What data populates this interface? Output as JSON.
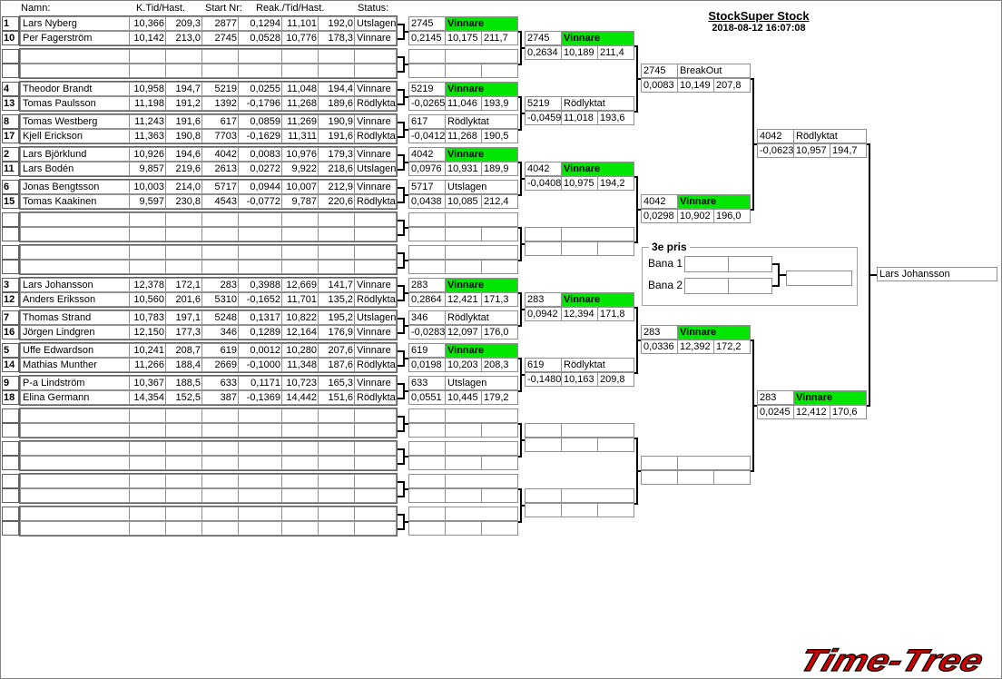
{
  "header": {
    "title": "StockSuper Stock",
    "timestamp": "2018-08-12 16:07:08"
  },
  "columns": {
    "name": "Namn:",
    "ktime": "K.Tid/Hast.",
    "start": "Start Nr:",
    "reak": "Reak./Tid/Hast.",
    "status": "Status:"
  },
  "colors": {
    "winner": "#00e600",
    "logo": "#d40000"
  },
  "heats": [
    {
      "rows": [
        {
          "seed": "1",
          "name": "Lars Nyberg",
          "kt": "10,366",
          "kh": "209,3",
          "start": "2877",
          "reak": "0,1294",
          "tid": "11,101",
          "hast": "192,0",
          "status": "Utslagen"
        },
        {
          "seed": "10",
          "name": "Per  Fagerström",
          "kt": "10,142",
          "kh": "213,0",
          "start": "2745",
          "reak": "0,0528",
          "tid": "10,776",
          "hast": "178,3",
          "status": "Vinnare"
        }
      ]
    },
    {
      "rows": [
        {
          "seed": "",
          "name": "",
          "kt": "",
          "kh": "",
          "start": "",
          "reak": "",
          "tid": "",
          "hast": "",
          "status": ""
        },
        {
          "seed": "",
          "name": "",
          "kt": "",
          "kh": "",
          "start": "",
          "reak": "",
          "tid": "",
          "hast": "",
          "status": ""
        }
      ]
    },
    {
      "rows": [
        {
          "seed": "4",
          "name": "Theodor Brandt",
          "kt": "10,958",
          "kh": "194,7",
          "start": "5219",
          "reak": "0,0255",
          "tid": "11,048",
          "hast": "194,4",
          "status": "Vinnare"
        },
        {
          "seed": "13",
          "name": "Tomas Paulsson",
          "kt": "11,198",
          "kh": "191,2",
          "start": "1392",
          "reak": "-0,1796",
          "tid": "11,268",
          "hast": "189,6",
          "status": "Rödlyktat"
        }
      ]
    },
    {
      "rows": [
        {
          "seed": "8",
          "name": "Tomas Westberg",
          "kt": "11,243",
          "kh": "191,6",
          "start": "617",
          "reak": "0,0859",
          "tid": "11,269",
          "hast": "190,9",
          "status": "Vinnare"
        },
        {
          "seed": "17",
          "name": "Kjell Erickson",
          "kt": "11,363",
          "kh": "190,8",
          "start": "7703",
          "reak": "-0,1629",
          "tid": "11,311",
          "hast": "191,6",
          "status": "Rödlyktat"
        }
      ]
    },
    {
      "rows": [
        {
          "seed": "2",
          "name": "Lars Björklund",
          "kt": "10,926",
          "kh": "194,6",
          "start": "4042",
          "reak": "0,0083",
          "tid": "10,976",
          "hast": "179,3",
          "status": "Vinnare"
        },
        {
          "seed": "11",
          "name": "Lars Bodén",
          "kt": "9,857",
          "kh": "219,6",
          "start": "2613",
          "reak": "0,0272",
          "tid": "9,922",
          "hast": "218,6",
          "status": "Utslagen"
        }
      ]
    },
    {
      "rows": [
        {
          "seed": "6",
          "name": "Jonas Bengtsson",
          "kt": "10,003",
          "kh": "214,0",
          "start": "5717",
          "reak": "0,0944",
          "tid": "10,007",
          "hast": "212,9",
          "status": "Vinnare"
        },
        {
          "seed": "15",
          "name": "Tomas Kaakinen",
          "kt": "9,597",
          "kh": "230,8",
          "start": "4543",
          "reak": "-0,0772",
          "tid": "9,787",
          "hast": "220,6",
          "status": "Rödlyktat"
        }
      ]
    },
    {
      "rows": [
        {
          "seed": "",
          "name": "",
          "kt": "",
          "kh": "",
          "start": "",
          "reak": "",
          "tid": "",
          "hast": "",
          "status": ""
        },
        {
          "seed": "",
          "name": "",
          "kt": "",
          "kh": "",
          "start": "",
          "reak": "",
          "tid": "",
          "hast": "",
          "status": ""
        }
      ]
    },
    {
      "rows": [
        {
          "seed": "",
          "name": "",
          "kt": "",
          "kh": "",
          "start": "",
          "reak": "",
          "tid": "",
          "hast": "",
          "status": ""
        },
        {
          "seed": "",
          "name": "",
          "kt": "",
          "kh": "",
          "start": "",
          "reak": "",
          "tid": "",
          "hast": "",
          "status": ""
        }
      ]
    },
    {
      "rows": [
        {
          "seed": "3",
          "name": "Lars Johansson",
          "kt": "12,378",
          "kh": "172,1",
          "start": "283",
          "reak": "0,3988",
          "tid": "12,669",
          "hast": "141,7",
          "status": "Vinnare"
        },
        {
          "seed": "12",
          "name": "Anders Eriksson",
          "kt": "10,560",
          "kh": "201,6",
          "start": "5310",
          "reak": "-0,1652",
          "tid": "11,701",
          "hast": "135,2",
          "status": "Rödlyktat"
        }
      ]
    },
    {
      "rows": [
        {
          "seed": "7",
          "name": "Thomas Strand",
          "kt": "10,783",
          "kh": "197,1",
          "start": "5248",
          "reak": "0,1317",
          "tid": "10,822",
          "hast": "195,2",
          "status": "Utslagen"
        },
        {
          "seed": "16",
          "name": "Jörgen Lindgren",
          "kt": "12,150",
          "kh": "177,3",
          "start": "346",
          "reak": "0,1289",
          "tid": "12,164",
          "hast": "176,9",
          "status": "Vinnare"
        }
      ]
    },
    {
      "rows": [
        {
          "seed": "5",
          "name": "Uffe Edwardson",
          "kt": "10,241",
          "kh": "208,7",
          "start": "619",
          "reak": "0,0012",
          "tid": "10,280",
          "hast": "207,6",
          "status": "Vinnare"
        },
        {
          "seed": "14",
          "name": "Mathias Munther",
          "kt": "11,266",
          "kh": "188,4",
          "start": "2669",
          "reak": "-0,1000",
          "tid": "11,348",
          "hast": "187,6",
          "status": "Rödlyktat"
        }
      ]
    },
    {
      "rows": [
        {
          "seed": "9",
          "name": "P-a Lindström",
          "kt": "10,367",
          "kh": "188,5",
          "start": "633",
          "reak": "0,1171",
          "tid": "10,723",
          "hast": "165,3",
          "status": "Vinnare"
        },
        {
          "seed": "18",
          "name": "Elina Germann",
          "kt": "14,354",
          "kh": "152,5",
          "start": "387",
          "reak": "-0,1369",
          "tid": "14,442",
          "hast": "151,6",
          "status": "Rödlyktat"
        }
      ]
    },
    {
      "rows": [
        {
          "seed": "",
          "name": "",
          "kt": "",
          "kh": "",
          "start": "",
          "reak": "",
          "tid": "",
          "hast": "",
          "status": ""
        },
        {
          "seed": "",
          "name": "",
          "kt": "",
          "kh": "",
          "start": "",
          "reak": "",
          "tid": "",
          "hast": "",
          "status": ""
        }
      ]
    },
    {
      "rows": [
        {
          "seed": "",
          "name": "",
          "kt": "",
          "kh": "",
          "start": "",
          "reak": "",
          "tid": "",
          "hast": "",
          "status": ""
        },
        {
          "seed": "",
          "name": "",
          "kt": "",
          "kh": "",
          "start": "",
          "reak": "",
          "tid": "",
          "hast": "",
          "status": ""
        }
      ]
    },
    {
      "rows": [
        {
          "seed": "",
          "name": "",
          "kt": "",
          "kh": "",
          "start": "",
          "reak": "",
          "tid": "",
          "hast": "",
          "status": ""
        },
        {
          "seed": "",
          "name": "",
          "kt": "",
          "kh": "",
          "start": "",
          "reak": "",
          "tid": "",
          "hast": "",
          "status": ""
        }
      ]
    },
    {
      "rows": [
        {
          "seed": "",
          "name": "",
          "kt": "",
          "kh": "",
          "start": "",
          "reak": "",
          "tid": "",
          "hast": "",
          "status": ""
        },
        {
          "seed": "",
          "name": "",
          "kt": "",
          "kh": "",
          "start": "",
          "reak": "",
          "tid": "",
          "hast": "",
          "status": ""
        }
      ]
    }
  ],
  "rounds": [
    [
      {
        "start": "2745",
        "status": "Vinnare",
        "reak": "0,2145",
        "tid": "10,175",
        "hast": "211,7"
      },
      {
        "start": "",
        "status": "",
        "reak": "",
        "tid": "",
        "hast": ""
      },
      {
        "start": "5219",
        "status": "Vinnare",
        "reak": "-0,0265",
        "tid": "11,046",
        "hast": "193,9"
      },
      {
        "start": "617",
        "status": "Rödlyktat",
        "reak": "-0,0412",
        "tid": "11,268",
        "hast": "190,5"
      },
      {
        "start": "4042",
        "status": "Vinnare",
        "reak": "0,0976",
        "tid": "10,931",
        "hast": "189,9"
      },
      {
        "start": "5717",
        "status": "Utslagen",
        "reak": "0,0438",
        "tid": "10,085",
        "hast": "212,4"
      },
      {
        "start": "",
        "status": "",
        "reak": "",
        "tid": "",
        "hast": ""
      },
      {
        "start": "",
        "status": "",
        "reak": "",
        "tid": "",
        "hast": ""
      },
      {
        "start": "283",
        "status": "Vinnare",
        "reak": "0,2864",
        "tid": "12,421",
        "hast": "171,3"
      },
      {
        "start": "346",
        "status": "Rödlyktat",
        "reak": "-0,0283",
        "tid": "12,097",
        "hast": "176,0"
      },
      {
        "start": "619",
        "status": "Vinnare",
        "reak": "0,0198",
        "tid": "10,203",
        "hast": "208,3"
      },
      {
        "start": "633",
        "status": "Utslagen",
        "reak": "0,0551",
        "tid": "10,445",
        "hast": "179,2"
      },
      {
        "start": "",
        "status": "",
        "reak": "",
        "tid": "",
        "hast": ""
      },
      {
        "start": "",
        "status": "",
        "reak": "",
        "tid": "",
        "hast": ""
      },
      {
        "start": "",
        "status": "",
        "reak": "",
        "tid": "",
        "hast": ""
      },
      {
        "start": "",
        "status": "",
        "reak": "",
        "tid": "",
        "hast": ""
      }
    ],
    [
      {
        "start": "2745",
        "status": "Vinnare",
        "reak": "0,2634",
        "tid": "10,189",
        "hast": "211,4"
      },
      {
        "start": "5219",
        "status": "Rödlyktat",
        "reak": "-0,0459",
        "tid": "11,018",
        "hast": "193,6"
      },
      {
        "start": "4042",
        "status": "Vinnare",
        "reak": "-0,0408",
        "tid": "10,975",
        "hast": "194,2"
      },
      {
        "start": "",
        "status": "",
        "reak": "",
        "tid": "",
        "hast": ""
      },
      {
        "start": "283",
        "status": "Vinnare",
        "reak": "0,0942",
        "tid": "12,394",
        "hast": "171,8"
      },
      {
        "start": "619",
        "status": "Rödlyktat",
        "reak": "-0,1480",
        "tid": "10,163",
        "hast": "209,8"
      },
      {
        "start": "",
        "status": "",
        "reak": "",
        "tid": "",
        "hast": ""
      },
      {
        "start": "",
        "status": "",
        "reak": "",
        "tid": "",
        "hast": ""
      }
    ],
    [
      {
        "start": "2745",
        "status": "BreakOut",
        "reak": "0,0083",
        "tid": "10,149",
        "hast": "207,8"
      },
      {
        "start": "4042",
        "status": "Vinnare",
        "reak": "0,0298",
        "tid": "10,902",
        "hast": "196,0"
      },
      {
        "start": "283",
        "status": "Vinnare",
        "reak": "0,0336",
        "tid": "12,392",
        "hast": "172,2"
      },
      {
        "start": "",
        "status": "",
        "reak": "",
        "tid": "",
        "hast": ""
      }
    ],
    [
      {
        "start": "4042",
        "status": "Rödlyktat",
        "reak": "-0,0623",
        "tid": "10,957",
        "hast": "194,7"
      },
      {
        "start": "283",
        "status": "Vinnare",
        "reak": "0,0245",
        "tid": "12,412",
        "hast": "170,6"
      }
    ]
  ],
  "final": {
    "winner": "Lars Johansson"
  },
  "third_place": {
    "title": "3e pris",
    "lane1": "Bana 1",
    "lane2": "Bana 2"
  },
  "logo": {
    "text": "Time-Tree"
  }
}
